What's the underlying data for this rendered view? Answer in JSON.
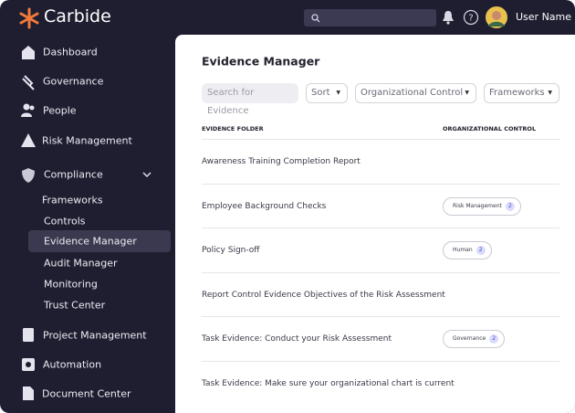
{
  "header": {
    "brand": "Carbide",
    "user_name": "User Name"
  },
  "sidebar": {
    "top_items": [
      "Dashboard",
      "Governance",
      "People",
      "Risk Management"
    ],
    "compliance": {
      "label": "Compliance",
      "children": [
        "Frameworks",
        "Controls",
        "Evidence Manager",
        "Audit Manager",
        "Monitoring",
        "Trust Center"
      ]
    },
    "bottom_items": [
      "Project Management",
      "Automation",
      "Document Center"
    ]
  },
  "main": {
    "title": "Evidence Manager",
    "filters": {
      "search_placeholder": "Search for Evidence",
      "sort": "Sort",
      "control": "Organizational Control",
      "frameworks": "Frameworks"
    },
    "table": {
      "columns": [
        "EVIDENCE FOLDER",
        "ORGANIZATIONAL CONTROL"
      ],
      "rows": [
        {
          "folder": "Awareness Training Completion Report"
        },
        {
          "folder": "Employee Background Checks",
          "control": {
            "label": "Risk Management",
            "count": "2"
          }
        },
        {
          "folder": "Policy Sign-off",
          "control": {
            "label": "Human",
            "count": "2"
          }
        },
        {
          "folder": "Report Control Evidence Objectives of the Risk Assessment"
        },
        {
          "folder": "Task Evidence: Conduct your Risk Assessment",
          "control": {
            "label": "Governance",
            "count": "2"
          }
        },
        {
          "folder": "Task Evidence: Make sure your organizational chart is current"
        }
      ]
    }
  }
}
